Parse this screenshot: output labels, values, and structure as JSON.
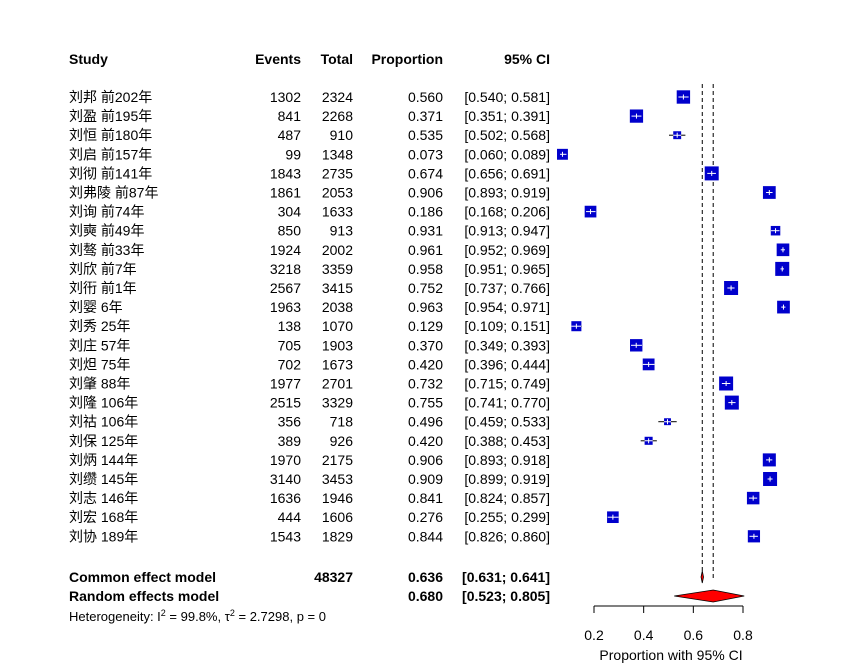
{
  "chart_data": {
    "type": "forest",
    "headers": {
      "study": "Study",
      "events": "Events",
      "total": "Total",
      "proportion": "Proportion",
      "ci": "95% CI"
    },
    "studies": [
      {
        "study": "刘邦 前202年",
        "events": 1302,
        "total": 2324,
        "prop": "0.560",
        "ci": "[0.540; 0.581]",
        "est": 0.56,
        "lo": 0.54,
        "hi": 0.581
      },
      {
        "study": "刘盈 前195年",
        "events": 841,
        "total": 2268,
        "prop": "0.371",
        "ci": "[0.351; 0.391]",
        "est": 0.371,
        "lo": 0.351,
        "hi": 0.391
      },
      {
        "study": "刘恒 前180年",
        "events": 487,
        "total": 910,
        "prop": "0.535",
        "ci": "[0.502; 0.568]",
        "est": 0.535,
        "lo": 0.502,
        "hi": 0.568
      },
      {
        "study": "刘启 前157年",
        "events": 99,
        "total": 1348,
        "prop": "0.073",
        "ci": "[0.060; 0.089]",
        "est": 0.073,
        "lo": 0.06,
        "hi": 0.089
      },
      {
        "study": "刘彻 前141年",
        "events": 1843,
        "total": 2735,
        "prop": "0.674",
        "ci": "[0.656; 0.691]",
        "est": 0.674,
        "lo": 0.656,
        "hi": 0.691
      },
      {
        "study": "刘弗陵 前87年",
        "events": 1861,
        "total": 2053,
        "prop": "0.906",
        "ci": "[0.893; 0.919]",
        "est": 0.906,
        "lo": 0.893,
        "hi": 0.919
      },
      {
        "study": "刘询 前74年",
        "events": 304,
        "total": 1633,
        "prop": "0.186",
        "ci": "[0.168; 0.206]",
        "est": 0.186,
        "lo": 0.168,
        "hi": 0.206
      },
      {
        "study": "刘奭 前49年",
        "events": 850,
        "total": 913,
        "prop": "0.931",
        "ci": "[0.913; 0.947]",
        "est": 0.931,
        "lo": 0.913,
        "hi": 0.947
      },
      {
        "study": "刘骜 前33年",
        "events": 1924,
        "total": 2002,
        "prop": "0.961",
        "ci": "[0.952; 0.969]",
        "est": 0.961,
        "lo": 0.952,
        "hi": 0.969
      },
      {
        "study": "刘欣 前7年",
        "events": 3218,
        "total": 3359,
        "prop": "0.958",
        "ci": "[0.951; 0.965]",
        "est": 0.958,
        "lo": 0.951,
        "hi": 0.965
      },
      {
        "study": "刘衎 前1年",
        "events": 2567,
        "total": 3415,
        "prop": "0.752",
        "ci": "[0.737; 0.766]",
        "est": 0.752,
        "lo": 0.737,
        "hi": 0.766
      },
      {
        "study": "刘婴 6年",
        "events": 1963,
        "total": 2038,
        "prop": "0.963",
        "ci": "[0.954; 0.971]",
        "est": 0.963,
        "lo": 0.954,
        "hi": 0.971
      },
      {
        "study": "刘秀 25年",
        "events": 138,
        "total": 1070,
        "prop": "0.129",
        "ci": "[0.109; 0.151]",
        "est": 0.129,
        "lo": 0.109,
        "hi": 0.151
      },
      {
        "study": "刘庄 57年",
        "events": 705,
        "total": 1903,
        "prop": "0.370",
        "ci": "[0.349; 0.393]",
        "est": 0.37,
        "lo": 0.349,
        "hi": 0.393
      },
      {
        "study": "刘炟 75年",
        "events": 702,
        "total": 1673,
        "prop": "0.420",
        "ci": "[0.396; 0.444]",
        "est": 0.42,
        "lo": 0.396,
        "hi": 0.444
      },
      {
        "study": "刘肇 88年",
        "events": 1977,
        "total": 2701,
        "prop": "0.732",
        "ci": "[0.715; 0.749]",
        "est": 0.732,
        "lo": 0.715,
        "hi": 0.749
      },
      {
        "study": "刘隆 106年",
        "events": 2515,
        "total": 3329,
        "prop": "0.755",
        "ci": "[0.741; 0.770]",
        "est": 0.755,
        "lo": 0.741,
        "hi": 0.77
      },
      {
        "study": "刘祜 106年",
        "events": 356,
        "total": 718,
        "prop": "0.496",
        "ci": "[0.459; 0.533]",
        "est": 0.496,
        "lo": 0.459,
        "hi": 0.533
      },
      {
        "study": "刘保 125年",
        "events": 389,
        "total": 926,
        "prop": "0.420",
        "ci": "[0.388; 0.453]",
        "est": 0.42,
        "lo": 0.388,
        "hi": 0.453
      },
      {
        "study": "刘炳 144年",
        "events": 1970,
        "total": 2175,
        "prop": "0.906",
        "ci": "[0.893; 0.918]",
        "est": 0.906,
        "lo": 0.893,
        "hi": 0.918
      },
      {
        "study": "刘缵 145年",
        "events": 3140,
        "total": 3453,
        "prop": "0.909",
        "ci": "[0.899; 0.919]",
        "est": 0.909,
        "lo": 0.899,
        "hi": 0.919
      },
      {
        "study": "刘志 146年",
        "events": 1636,
        "total": 1946,
        "prop": "0.841",
        "ci": "[0.824; 0.857]",
        "est": 0.841,
        "lo": 0.824,
        "hi": 0.857
      },
      {
        "study": "刘宏 168年",
        "events": 444,
        "total": 1606,
        "prop": "0.276",
        "ci": "[0.255; 0.299]",
        "est": 0.276,
        "lo": 0.255,
        "hi": 0.299
      },
      {
        "study": "刘协 189年",
        "events": 1543,
        "total": 1829,
        "prop": "0.844",
        "ci": "[0.826; 0.860]",
        "est": 0.844,
        "lo": 0.826,
        "hi": 0.86
      }
    ],
    "common": {
      "label": "Common effect model",
      "total": 48327,
      "prop": "0.636",
      "ci": "[0.631; 0.641]",
      "est": 0.636,
      "lo": 0.631,
      "hi": 0.641
    },
    "random": {
      "label": "Random effects model",
      "prop": "0.680",
      "ci": "[0.523; 0.805]",
      "est": 0.68,
      "lo": 0.523,
      "hi": 0.805
    },
    "heterogeneity": {
      "prefix": "Heterogeneity: ",
      "i2_symbol": "I",
      "i2_value": " = 99.8%, ",
      "tau2_symbol": "τ",
      "tau2_value": " = 2.7298, ",
      "p_symbol": "p",
      "p_value": " = 0"
    },
    "axis": {
      "xlabel": "Proportion with 95% CI",
      "xlim": [
        0.2,
        0.8
      ],
      "ticks": [
        "0.2",
        "0.4",
        "0.6",
        "0.8"
      ],
      "tick_values": [
        0.2,
        0.4,
        0.6,
        0.8
      ]
    },
    "colors": {
      "square": "#0000cc",
      "diamond": "#ff0000",
      "reference_line": "#000000",
      "ci_line": "#000000"
    }
  }
}
